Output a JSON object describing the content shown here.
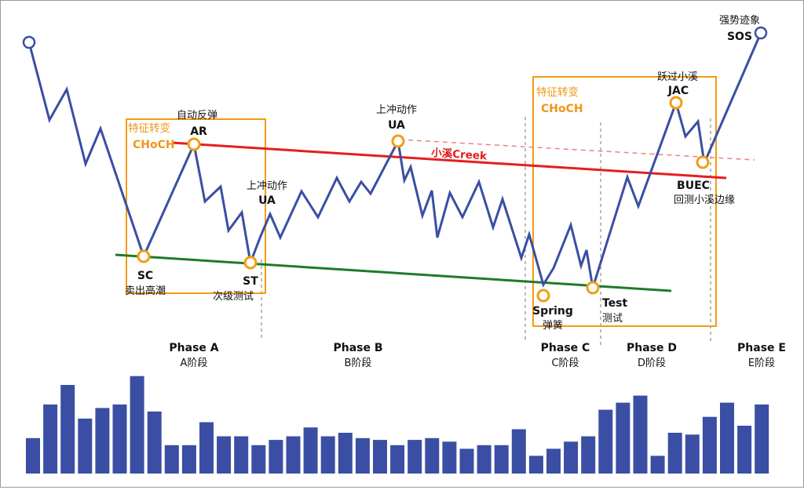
{
  "events": {
    "sc": {
      "code": "SC",
      "cn": "卖出高潮"
    },
    "ar": {
      "code": "AR",
      "cn": "自动反弹"
    },
    "st": {
      "code": "ST",
      "cn": "次级测试"
    },
    "ua1": {
      "code": "UA",
      "cn": "上冲动作"
    },
    "ua2": {
      "code": "UA",
      "cn": "上冲动作"
    },
    "spring": {
      "code": "Spring",
      "cn": "弹簧"
    },
    "test": {
      "code": "Test",
      "cn": "测试"
    },
    "jac": {
      "code": "JAC",
      "cn": "跃过小溪"
    },
    "buec": {
      "code": "BUEC",
      "cn": "回测小溪边缘"
    },
    "sos": {
      "code": "SOS",
      "cn": "强势迹象"
    }
  },
  "choch": {
    "cn": "特征转变",
    "en": "CHoCH"
  },
  "creek_label": "小溪Creek",
  "phases": [
    {
      "en": "Phase A",
      "cn": "A阶段"
    },
    {
      "en": "Phase B",
      "cn": "B阶段"
    },
    {
      "en": "Phase C",
      "cn": "C阶段"
    },
    {
      "en": "Phase D",
      "cn": "D阶段"
    },
    {
      "en": "Phase E",
      "cn": "E阶段"
    }
  ],
  "colors": {
    "price_line": "#3a4fa3",
    "resistance_line": "#e61e1e",
    "support_line": "#1e7a2b",
    "event_marker": "#f39c12",
    "volume_bar": "#3a4fa3"
  },
  "volume": [
    2.0,
    3.9,
    5.0,
    3.1,
    3.7,
    3.9,
    5.5,
    3.5,
    1.6,
    1.6,
    2.9,
    2.1,
    2.1,
    1.6,
    1.9,
    2.1,
    2.6,
    2.1,
    2.3,
    2.0,
    1.9,
    1.6,
    1.9,
    2.0,
    1.8,
    1.4,
    1.6,
    1.6,
    2.5,
    1.0,
    1.4,
    1.8,
    2.1,
    3.6,
    4.0,
    4.4,
    1.0,
    2.3,
    2.2,
    3.2,
    4.0,
    2.7,
    3.9
  ]
}
